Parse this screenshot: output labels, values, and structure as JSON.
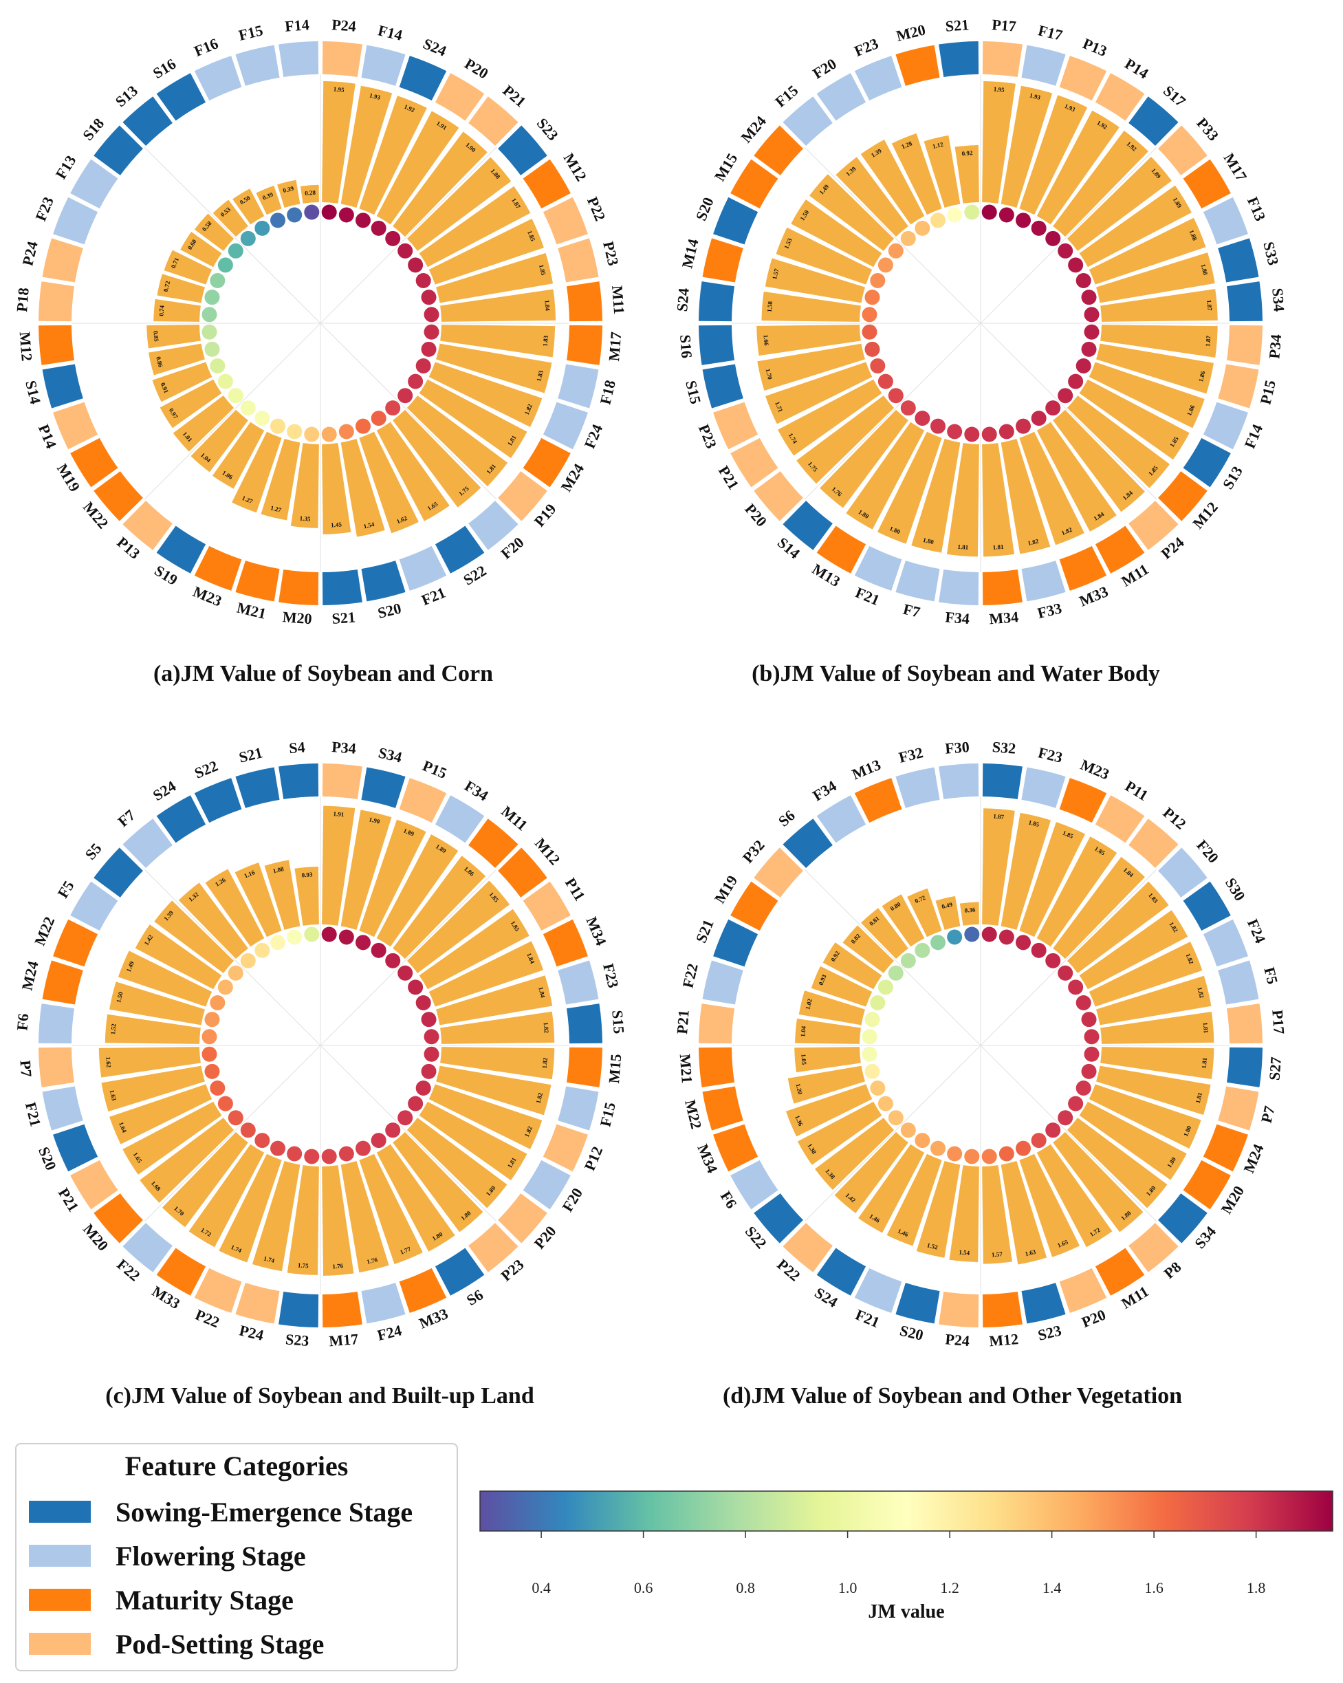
{
  "colors": {
    "Sowing-Emergence": "#1f72b4",
    "Flowering": "#aec8e9",
    "Maturity": "#ff7f0e",
    "Pod-Setting": "#ffbb78",
    "bar": "#f4b043"
  },
  "legend": {
    "title": "Feature Categories",
    "items": [
      {
        "key": "Sowing-Emergence",
        "label": "Sowing-Emergence Stage"
      },
      {
        "key": "Flowering",
        "label": "Flowering Stage"
      },
      {
        "key": "Maturity",
        "label": "Maturity Stage"
      },
      {
        "key": "Pod-Setting",
        "label": "Pod-Setting Stage"
      }
    ]
  },
  "colorbar": {
    "label": "JM value",
    "min": 0.28,
    "max": 1.95,
    "ticks": [
      "0.4",
      "0.6",
      "0.8",
      "1.0",
      "1.2",
      "1.4",
      "1.6",
      "1.8"
    ]
  },
  "chart_data": [
    {
      "type": "circular-bar",
      "title": "(a)JM Value of Soybean and Corn",
      "categories": [
        "P24",
        "F14",
        "S24",
        "P20",
        "P21",
        "S23",
        "M12",
        "P22",
        "P23",
        "M11",
        "M17",
        "F18",
        "F24",
        "M24",
        "P19",
        "F20",
        "S22",
        "F21",
        "S20",
        "S21",
        "M20",
        "M21",
        "M23",
        "S19",
        "P13",
        "M22",
        "M19",
        "P14",
        "S14",
        "M12",
        "P18",
        "P24",
        "F23",
        "F13",
        "S18",
        "S13",
        "S16",
        "F16",
        "F15",
        "F14"
      ],
      "values": [
        1.95,
        1.93,
        1.92,
        1.91,
        1.9,
        1.88,
        1.87,
        1.85,
        1.85,
        1.84,
        1.83,
        1.83,
        1.82,
        1.81,
        1.81,
        1.75,
        1.65,
        1.62,
        1.54,
        1.45,
        1.35,
        1.27,
        1.27,
        1.06,
        1.04,
        1.01,
        0.97,
        0.91,
        0.86,
        0.85,
        0.74,
        0.72,
        0.71,
        0.6,
        0.58,
        0.53,
        0.5,
        0.39,
        0.39,
        0.28
      ]
    },
    {
      "type": "circular-bar",
      "title": "(b)JM Value of Soybean and Water Body",
      "categories": [
        "P17",
        "F17",
        "P13",
        "P14",
        "S17",
        "P33",
        "M17",
        "F13",
        "S33",
        "S34",
        "P34",
        "P15",
        "F14",
        "S13",
        "M12",
        "P24",
        "M11",
        "M33",
        "F33",
        "M34",
        "F34",
        "F7",
        "F21",
        "M13",
        "S14",
        "P20",
        "P21",
        "P23",
        "S15",
        "S16",
        "S24",
        "M14",
        "S20",
        "M15",
        "M24",
        "F15",
        "F20",
        "F23",
        "M20",
        "S21"
      ],
      "values": [
        1.95,
        1.93,
        1.93,
        1.92,
        1.92,
        1.89,
        1.89,
        1.88,
        1.88,
        1.87,
        1.87,
        1.86,
        1.86,
        1.85,
        1.85,
        1.84,
        1.84,
        1.82,
        1.82,
        1.81,
        1.81,
        1.8,
        1.8,
        1.8,
        1.76,
        1.75,
        1.74,
        1.71,
        1.7,
        1.66,
        1.58,
        1.57,
        1.53,
        1.5,
        1.49,
        1.39,
        1.39,
        1.28,
        1.12,
        0.92
      ]
    },
    {
      "type": "circular-bar",
      "title": "(c)JM Value of Soybean and Built-up Land",
      "categories": [
        "P34",
        "S34",
        "P15",
        "F34",
        "M11",
        "M12",
        "P11",
        "M34",
        "F23",
        "S15",
        "M15",
        "F15",
        "P12",
        "F20",
        "P20",
        "P23",
        "S6",
        "M33",
        "F24",
        "M17",
        "S23",
        "P24",
        "P22",
        "M33",
        "F22",
        "M20",
        "P21",
        "S20",
        "F21",
        "P7",
        "F6",
        "M24",
        "M22",
        "F5",
        "S5",
        "F7",
        "S24",
        "S22",
        "S21",
        "S4"
      ],
      "values": [
        1.91,
        1.9,
        1.89,
        1.89,
        1.86,
        1.85,
        1.85,
        1.84,
        1.84,
        1.82,
        1.82,
        1.82,
        1.82,
        1.81,
        1.8,
        1.8,
        1.8,
        1.77,
        1.76,
        1.76,
        1.75,
        1.74,
        1.74,
        1.72,
        1.7,
        1.68,
        1.65,
        1.64,
        1.63,
        1.62,
        1.52,
        1.5,
        1.49,
        1.42,
        1.39,
        1.32,
        1.26,
        1.16,
        1.08,
        0.93
      ]
    },
    {
      "type": "circular-bar",
      "title": "(d)JM Value of Soybean and Other Vegetation",
      "categories": [
        "S32",
        "F23",
        "M23",
        "P11",
        "P12",
        "F20",
        "S30",
        "F24",
        "F5",
        "P17",
        "S27",
        "P7",
        "M24",
        "M20",
        "S34",
        "P8",
        "M11",
        "P20",
        "S23",
        "M12",
        "P24",
        "S20",
        "F21",
        "S24",
        "P22",
        "S22",
        "F6",
        "M34",
        "M22",
        "M21",
        "P21",
        "F22",
        "S21",
        "M19",
        "P32",
        "S6",
        "F34",
        "M13",
        "F32",
        "F30"
      ],
      "values": [
        1.87,
        1.85,
        1.85,
        1.85,
        1.84,
        1.83,
        1.82,
        1.82,
        1.82,
        1.81,
        1.81,
        1.81,
        1.8,
        1.8,
        1.8,
        1.8,
        1.72,
        1.65,
        1.63,
        1.57,
        1.54,
        1.52,
        1.46,
        1.46,
        1.42,
        1.38,
        1.38,
        1.36,
        1.2,
        1.05,
        1.04,
        1.02,
        0.93,
        0.92,
        0.82,
        0.81,
        0.8,
        0.72,
        0.49,
        0.36
      ]
    }
  ]
}
